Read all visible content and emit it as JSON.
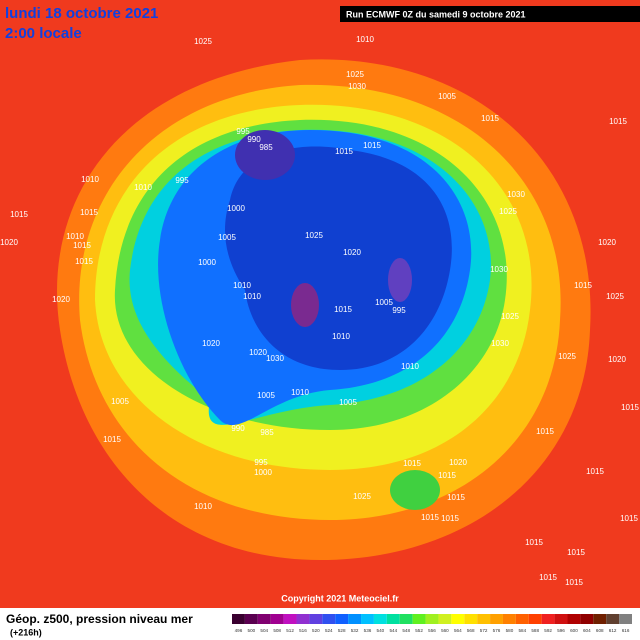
{
  "header": {
    "date": "lundi 18 octobre 2021",
    "time": "2:00 locale",
    "run": "Run ECMWF 0Z du samedi 9 octobre 2021"
  },
  "copyright": "Copyright 2021 Meteociel.fr",
  "footer": {
    "title": "Géop. z500, pression niveau mer",
    "lead": "(+216h)"
  },
  "isobar_labels": [
    "1025",
    "1010",
    "1025",
    "1030",
    "1005",
    "995",
    "990",
    "985",
    "1015",
    "1015",
    "1015",
    "1015",
    "1010",
    "1010",
    "995",
    "1030",
    "1025",
    "1015",
    "1015",
    "1000",
    "1010",
    "1005",
    "1025",
    "1020",
    "1020",
    "1020",
    "1015",
    "1015",
    "1000",
    "1030",
    "1015",
    "1010",
    "1010",
    "1025",
    "1020",
    "1005",
    "995",
    "1015",
    "1025",
    "1010",
    "1020",
    "1030",
    "1020",
    "1030",
    "1025",
    "1010",
    "1020",
    "1005",
    "1010",
    "1005",
    "1005",
    "1015",
    "990",
    "985",
    "1015",
    "1015",
    "995",
    "1000",
    "1015",
    "1020",
    "1015",
    "1015",
    "1025",
    "1015",
    "1010",
    "1015",
    "1015",
    "1015",
    "1015",
    "1015",
    "1015",
    "1015"
  ],
  "colorbar": {
    "labels": [
      496,
      500,
      504,
      508,
      512,
      516,
      520,
      524,
      528,
      532,
      536,
      540,
      544,
      548,
      552,
      556,
      560,
      564,
      568,
      572,
      576,
      580,
      584,
      588,
      592,
      596,
      600,
      604,
      608,
      612,
      616
    ],
    "colors": [
      "#3a0030",
      "#5a0050",
      "#800070",
      "#a00090",
      "#c010c0",
      "#9030d0",
      "#6040e0",
      "#3050f0",
      "#1060ff",
      "#0090ff",
      "#00c0ff",
      "#00e0e0",
      "#00e0a0",
      "#20e060",
      "#60f020",
      "#a0f020",
      "#d0f020",
      "#ffff00",
      "#ffe000",
      "#ffc000",
      "#ffa000",
      "#ff8000",
      "#ff6000",
      "#ff4000",
      "#f02020",
      "#d01010",
      "#b00000",
      "#900000",
      "#702000",
      "#604030",
      "#808080"
    ]
  }
}
